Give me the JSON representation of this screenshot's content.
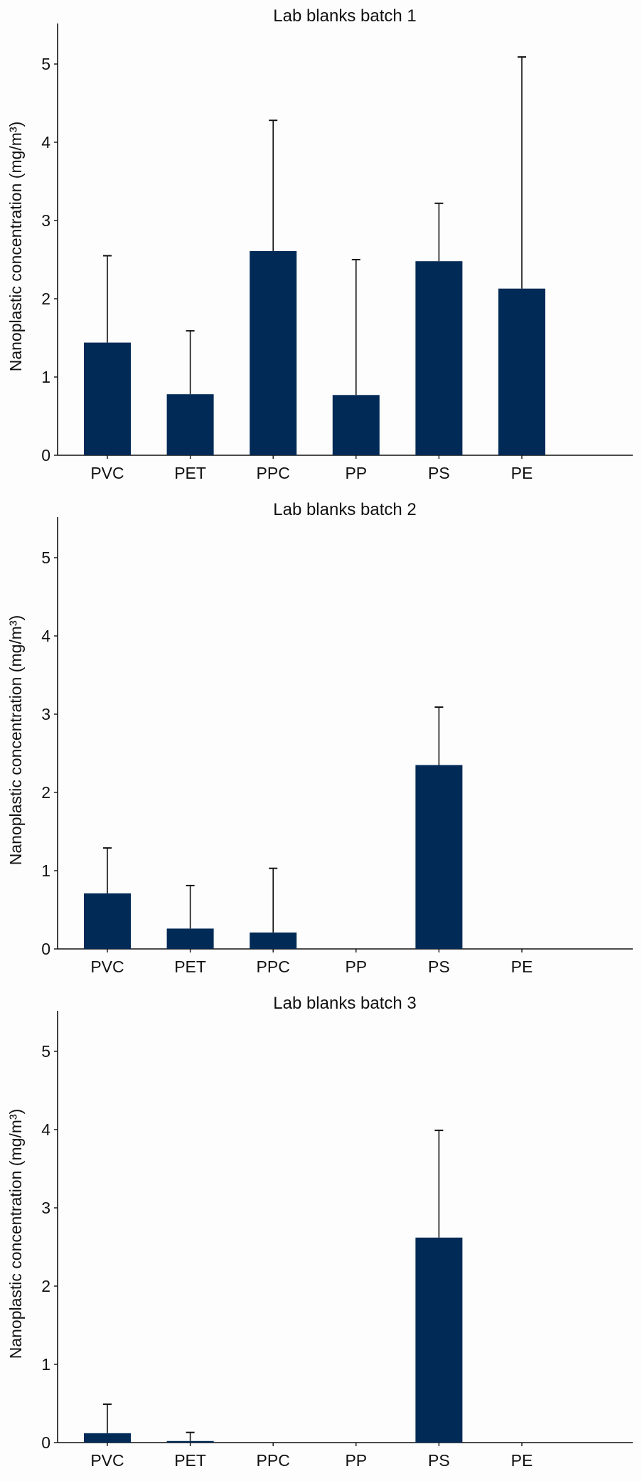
{
  "chart_data": [
    {
      "type": "bar",
      "title": "Lab blanks batch 1",
      "ylabel": "Nanoplastic concentration (mg/m³)",
      "categories": [
        "PVC",
        "PET",
        "PPC",
        "PP",
        "PS",
        "PE"
      ],
      "values": [
        1.44,
        0.78,
        2.61,
        0.77,
        2.48,
        2.13
      ],
      "error_upper": [
        2.55,
        1.59,
        4.28,
        2.5,
        3.22,
        5.09
      ],
      "ylim": [
        0,
        5.5
      ],
      "yticks": [
        0,
        1,
        2,
        3,
        4,
        5
      ],
      "grid": false,
      "color": "#012a57"
    },
    {
      "type": "bar",
      "title": "Lab blanks batch 2",
      "ylabel": "Nanoplastic concentration (mg/m³)",
      "categories": [
        "PVC",
        "PET",
        "PPC",
        "PP",
        "PS",
        "PE"
      ],
      "values": [
        0.71,
        0.26,
        0.21,
        0,
        2.35,
        0
      ],
      "error_upper": [
        1.29,
        0.81,
        1.03,
        0,
        3.09,
        0
      ],
      "ylim": [
        0,
        5.5
      ],
      "yticks": [
        0,
        1,
        2,
        3,
        4,
        5
      ],
      "grid": false,
      "color": "#012a57"
    },
    {
      "type": "bar",
      "title": "Lab blanks batch 3",
      "ylabel": "Nanoplastic concentration (mg/m³)",
      "categories": [
        "PVC",
        "PET",
        "PPC",
        "PP",
        "PS",
        "PE"
      ],
      "values": [
        0.12,
        0.02,
        0,
        0,
        2.62,
        0
      ],
      "error_upper": [
        0.49,
        0.13,
        0,
        0,
        3.99,
        0
      ],
      "ylim": [
        0,
        5.5
      ],
      "yticks": [
        0,
        1,
        2,
        3,
        4,
        5
      ],
      "grid": false,
      "color": "#012a57"
    }
  ]
}
